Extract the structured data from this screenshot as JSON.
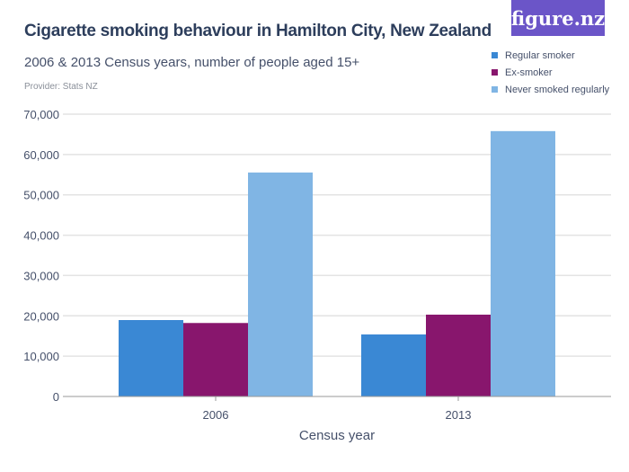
{
  "title": "Cigarette smoking behaviour in Hamilton City, New Zealand",
  "subtitle": "2006 & 2013 Census years, number of people aged 15+",
  "provider": "Provider: Stats NZ",
  "logo": "figure.nz",
  "chart_data": {
    "type": "bar",
    "categories": [
      "2006",
      "2013"
    ],
    "series": [
      {
        "name": "Regular smoker",
        "color": "#3a88d4",
        "values": [
          18950,
          15380
        ]
      },
      {
        "name": "Ex-smoker",
        "color": "#88166d",
        "values": [
          18220,
          20290
        ]
      },
      {
        "name": "Never smoked regularly",
        "color": "#80b5e4",
        "values": [
          55540,
          65800
        ]
      }
    ],
    "xlabel": "Census year",
    "ylabel": "",
    "ylim": [
      0,
      70000
    ],
    "yticks": [
      "0",
      "10,000",
      "20,000",
      "30,000",
      "40,000",
      "50,000",
      "60,000",
      "70,000"
    ],
    "grid": true,
    "legend": "top-right"
  }
}
